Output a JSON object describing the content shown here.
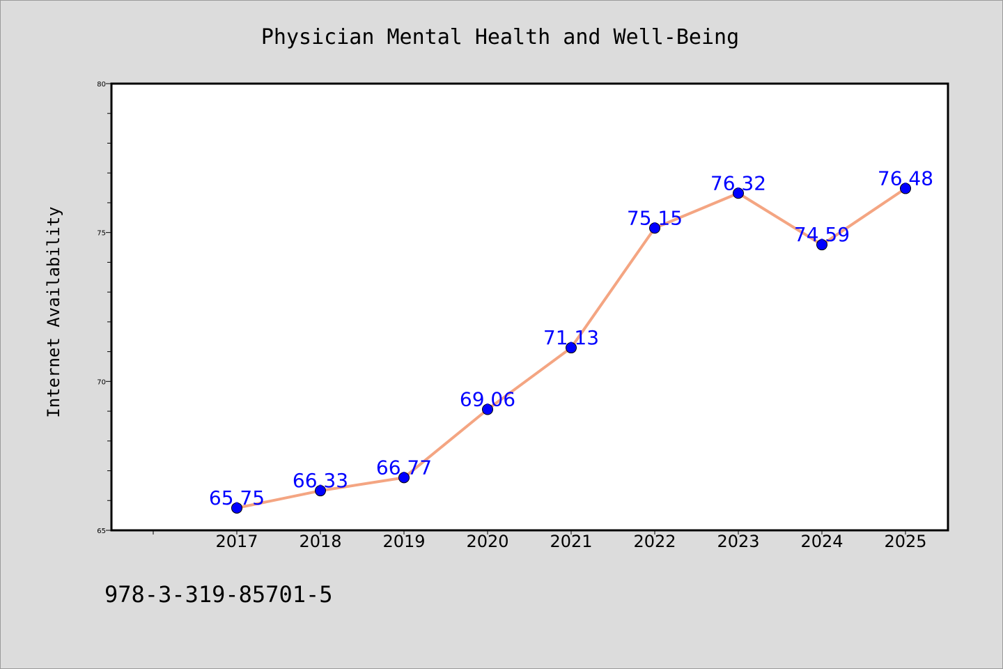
{
  "chart_data": {
    "type": "line",
    "title": "Physician Mental Health and Well-Being",
    "xlabel": "",
    "ylabel": "Internet Availability",
    "categories": [
      "2017",
      "2018",
      "2019",
      "2020",
      "2021",
      "2022",
      "2023",
      "2024",
      "2025"
    ],
    "values": [
      65.75,
      66.33,
      66.77,
      69.06,
      71.13,
      75.15,
      76.32,
      74.59,
      76.48
    ],
    "data_labels": [
      "65.75",
      "66.33",
      "66.77",
      "69.06",
      "71.13",
      "75.15",
      "76.32",
      "74.59",
      "76.48"
    ],
    "ylim": [
      65,
      80
    ],
    "yticks": [
      65,
      70,
      75,
      80
    ],
    "grid": false,
    "legend": "none",
    "colors": {
      "line": "#f4a582",
      "marker": "#0000ff",
      "label": "#0000ff",
      "plot_background": "#ffffff",
      "page_background": "#dcdcdc"
    }
  },
  "footer": {
    "code": "978-3-319-85701-5"
  }
}
